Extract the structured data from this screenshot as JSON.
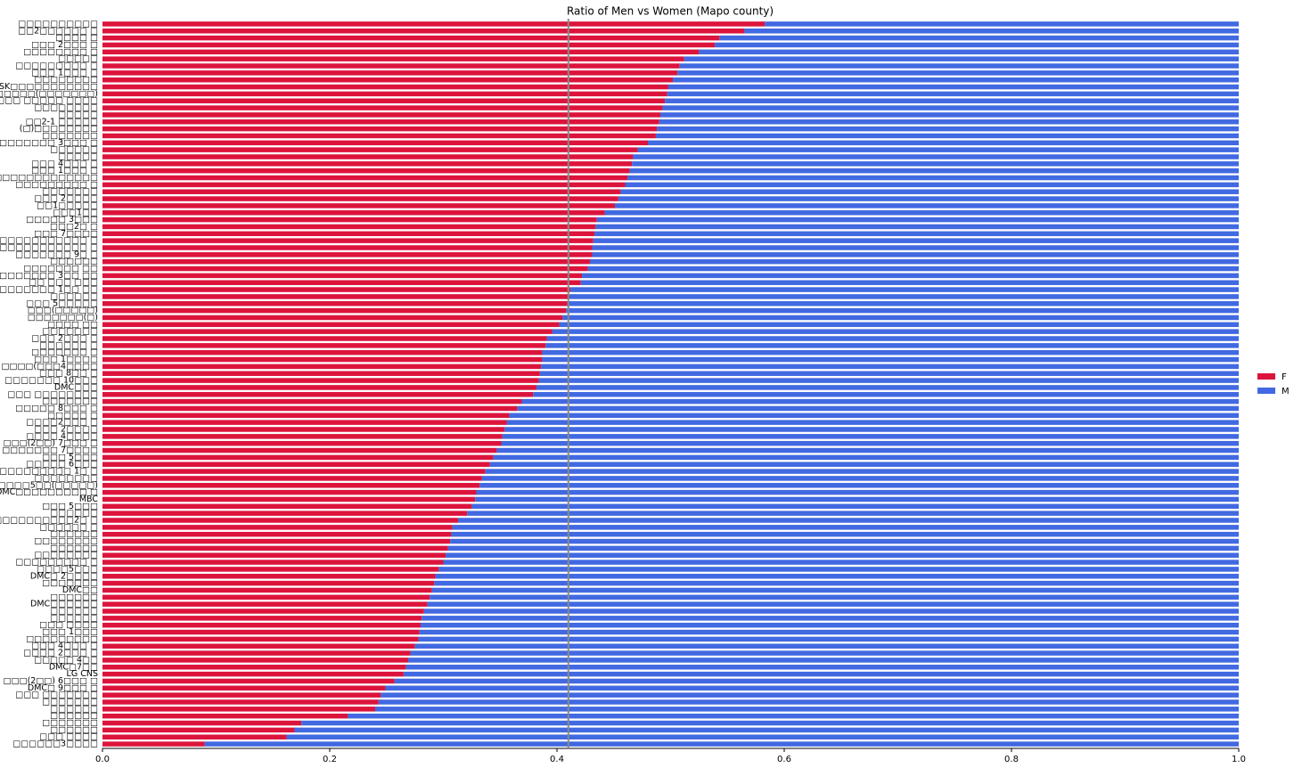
{
  "chart_data": {
    "type": "stacked_barh",
    "title": "Ratio of Men vs Women (Mapo county)",
    "categories": [
      "□□□□□□□□□□",
      "□□2□□□□□□ □",
      "□□□□ □",
      "□□□ 2□□□ □",
      "□□□□□□□□ □",
      "□□□□□",
      "□□□□□□□□□ □",
      "□□□ 1□□□ □",
      "□□□□□□□□",
      "SK□□□□□□□□□□□",
      "□□□□□□(□□□□□□□)",
      "□□□ □□□□□ □□□□",
      "□□□□□□□□",
      "□□□□□",
      "□□2-1 □□□□□",
      "(□)□□□□□□□□",
      "□□□□□□□",
      "□□□□□□□ 3□□□ □",
      "□□□□□□",
      "□□□□□",
      "□□□ 4□□□ □",
      "□□□ 1□□□ □",
      "□□□□□□□□□□□□□",
      "□□□□□□□□□ □",
      "□□□□□□□",
      "□□□ 2□□□□",
      "□□1□□□□□",
      "□□□1□□",
      "□□□□□ 3□□□",
      "□□□2□ □",
      "□□□ 7□□□□",
      "□□□□□□□□□□□□ □",
      "□□□□□□□□□□□□□ □",
      "□□□□□□□ 9□ □",
      "□□□□□□",
      "□□□□□□□ □□",
      "□□□□□□□ 3□□ □□",
      "□□ □□□ □□□",
      "□□□□□□□ 1□□ □□",
      "□□□□□□",
      "□□□ 5□□□□□",
      "□□□(□□□□□)",
      "□□□□□□□(□)",
      "□□□□ □□",
      "□□□□□□□",
      "□□□ 2□□□ □",
      "□□□□□□ □",
      "□□□□□□□ □",
      "□□□ 1□□□□",
      "□□□□(□□□4□□□□",
      "□□□ 8□□ □",
      "□□□□□□□ 10□□□",
      "DMC□□□",
      "□□□ □□□□□□□□",
      "□□□□□□□",
      "□□□□□ 8□□□ □",
      "□□□□□ □",
      "□□□□2□□□ □",
      "□□□ 2□□□□",
      "□□□□ 4□□□□",
      "□□□(2□□) 7□□□ □",
      "□□□□□□□ 7□□□□",
      "□□□ 5□□□",
      "□□□□□ 6□□□",
      "□□□□□□□□□ 1□ □",
      "□□□□□□□□",
      "□□□□□□□5□□(□□□□□)",
      "DMC□□□□□□□□□ □",
      "MBC",
      "□□□ 5□□□",
      "□□□□□□",
      "□□□□□□□□□□2□ □",
      "□□□□□□ □",
      "□□□□□□",
      "□□□□□□□□",
      "□□□□□□",
      "□□□□□□□□",
      "□□□□□□□□□ □",
      "□□□□5□□□",
      "DMC□ 2□□□□",
      "□□□□□□□",
      "DMC□□",
      "□□□□□□",
      "DMC□□□□□□",
      "□□□□□□",
      "□□□□□□",
      "□□□ □□□□",
      "□□□ 1□□□",
      "□□□□□□□□□",
      "□□□ 4□□□ □",
      "□□□□ 2□□□ □",
      "□□□□□ 4□□",
      "DMC□7□□",
      "LG CNS",
      "□□□(2□□) 6□□□ □",
      "DMC□ 9□□□ □",
      "□□□ □□□□□□□",
      "□□□□□□□",
      "□□□□□□",
      "□□□□□□",
      "□□□□□□□",
      "□□□□□□",
      "□□□ □□□□",
      "□□□□□□3□□□□"
    ],
    "series": [
      {
        "name": "F",
        "color": "#dc143c",
        "values": [
          0.583,
          0.565,
          0.543,
          0.539,
          0.525,
          0.512,
          0.508,
          0.506,
          0.502,
          0.498,
          0.497,
          0.495,
          0.493,
          0.491,
          0.49,
          0.488,
          0.487,
          0.48,
          0.471,
          0.467,
          0.466,
          0.464,
          0.462,
          0.46,
          0.456,
          0.454,
          0.451,
          0.442,
          0.435,
          0.434,
          0.433,
          0.432,
          0.431,
          0.431,
          0.429,
          0.427,
          0.422,
          0.421,
          0.412,
          0.411,
          0.409,
          0.408,
          0.405,
          0.402,
          0.396,
          0.391,
          0.39,
          0.387,
          0.387,
          0.386,
          0.385,
          0.384,
          0.382,
          0.379,
          0.369,
          0.365,
          0.358,
          0.356,
          0.354,
          0.352,
          0.351,
          0.347,
          0.344,
          0.341,
          0.337,
          0.334,
          0.332,
          0.329,
          0.328,
          0.325,
          0.321,
          0.313,
          0.308,
          0.307,
          0.306,
          0.304,
          0.302,
          0.3,
          0.296,
          0.293,
          0.292,
          0.29,
          0.288,
          0.286,
          0.283,
          0.281,
          0.28,
          0.279,
          0.278,
          0.275,
          0.271,
          0.269,
          0.267,
          0.265,
          0.257,
          0.249,
          0.245,
          0.243,
          0.24,
          0.216,
          0.175,
          0.169,
          0.162,
          0.09
        ]
      },
      {
        "name": "M",
        "color": "#4169e1",
        "values": [
          0.417,
          0.435,
          0.457,
          0.461,
          0.475,
          0.488,
          0.492,
          0.494,
          0.498,
          0.502,
          0.503,
          0.505,
          0.507,
          0.509,
          0.51,
          0.512,
          0.513,
          0.52,
          0.529,
          0.533,
          0.534,
          0.536,
          0.538,
          0.54,
          0.544,
          0.546,
          0.549,
          0.558,
          0.565,
          0.566,
          0.567,
          0.568,
          0.569,
          0.569,
          0.571,
          0.573,
          0.578,
          0.579,
          0.588,
          0.589,
          0.591,
          0.592,
          0.595,
          0.598,
          0.604,
          0.609,
          0.61,
          0.613,
          0.613,
          0.614,
          0.615,
          0.616,
          0.618,
          0.621,
          0.631,
          0.635,
          0.642,
          0.644,
          0.646,
          0.648,
          0.649,
          0.653,
          0.656,
          0.659,
          0.663,
          0.666,
          0.668,
          0.671,
          0.672,
          0.675,
          0.679,
          0.687,
          0.692,
          0.693,
          0.694,
          0.696,
          0.698,
          0.7,
          0.704,
          0.707,
          0.708,
          0.71,
          0.712,
          0.714,
          0.717,
          0.719,
          0.72,
          0.721,
          0.722,
          0.725,
          0.729,
          0.731,
          0.733,
          0.735,
          0.743,
          0.751,
          0.755,
          0.757,
          0.76,
          0.784,
          0.825,
          0.831,
          0.838,
          0.91
        ]
      }
    ],
    "xlim": [
      0,
      1
    ],
    "xticks": [
      {
        "value": 0,
        "label": "0.0"
      },
      0.2,
      0.4,
      0.6,
      0.8,
      {
        "value": 1,
        "label": "1.0"
      }
    ],
    "mean_line": 0.41,
    "legend": "center right"
  }
}
